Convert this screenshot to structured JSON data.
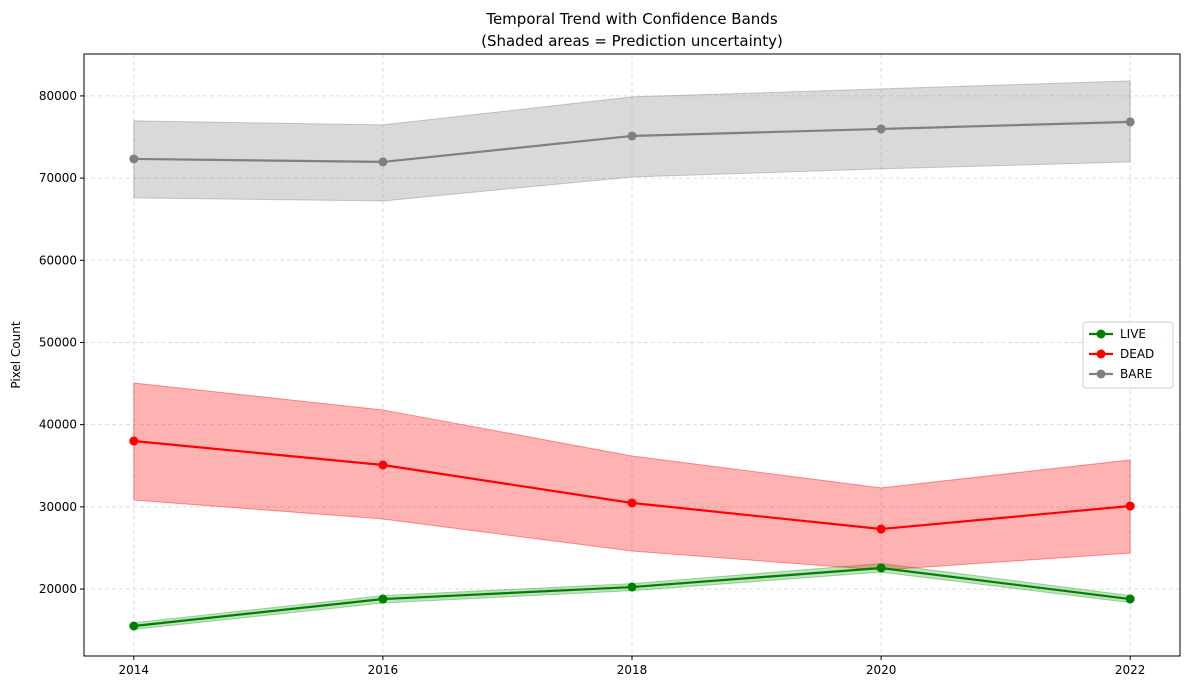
{
  "chart_data": {
    "type": "line",
    "title": "Temporal Trend with Confidence Bands",
    "subtitle": "(Shaded areas = Prediction uncertainty)",
    "xlabel": "",
    "ylabel": "Pixel Count",
    "x": [
      2014,
      2016,
      2018,
      2020,
      2022
    ],
    "xticks": [
      "2014",
      "2016",
      "2018",
      "2020",
      "2022"
    ],
    "yticks": [
      "20000",
      "30000",
      "40000",
      "50000",
      "60000",
      "70000",
      "80000"
    ],
    "xlim": [
      2013.6,
      2022.4
    ],
    "ylim": [
      11850,
      85100
    ],
    "grid": true,
    "legend_position": "center-right",
    "series": [
      {
        "name": "LIVE",
        "color": "#008000",
        "band_color": "#2ca02c",
        "values": [
          15500,
          18780,
          20240,
          22560,
          18780
        ],
        "lower": [
          15100,
          18300,
          19800,
          22050,
          18350
        ],
        "upper": [
          15900,
          19200,
          20650,
          23100,
          19200
        ]
      },
      {
        "name": "DEAD",
        "color": "#ff0000",
        "band_color": "#ff0000",
        "values": [
          38010,
          35090,
          30470,
          27300,
          30100
        ],
        "lower": [
          30830,
          28520,
          24620,
          22310,
          24380
        ],
        "upper": [
          45070,
          41790,
          36190,
          32300,
          35700
        ]
      },
      {
        "name": "BARE",
        "color": "#808080",
        "band_color": "#808080",
        "values": [
          72330,
          71970,
          75130,
          75980,
          76840
        ],
        "lower": [
          67590,
          67220,
          70140,
          71120,
          71970
        ],
        "upper": [
          76960,
          76470,
          79880,
          80850,
          81830
        ]
      }
    ]
  }
}
